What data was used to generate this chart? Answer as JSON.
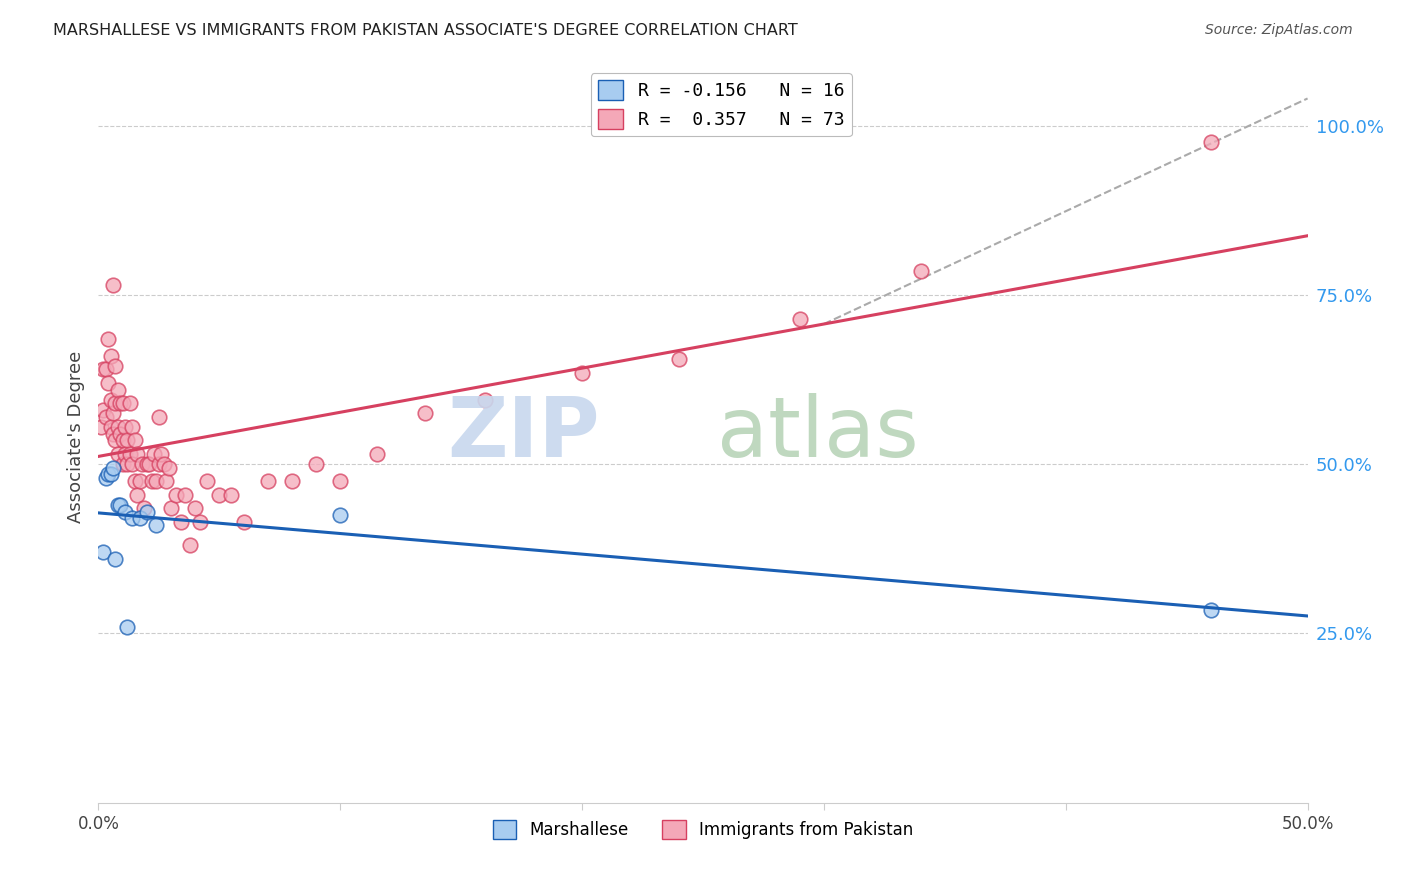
{
  "title": "MARSHALLESE VS IMMIGRANTS FROM PAKISTAN ASSOCIATE'S DEGREE CORRELATION CHART",
  "source": "Source: ZipAtlas.com",
  "ylabel": "Associate's Degree",
  "right_yticklabels": [
    "25.0%",
    "50.0%",
    "75.0%",
    "100.0%"
  ],
  "right_yticks": [
    0.25,
    0.5,
    0.75,
    1.0
  ],
  "xlim": [
    0.0,
    0.5
  ],
  "ylim": [
    0.0,
    1.08
  ],
  "xtick_vals": [
    0.0,
    0.1,
    0.2,
    0.3,
    0.4,
    0.5
  ],
  "xtick_labels": [
    "0.0%",
    "",
    "",
    "",
    "",
    "50.0%"
  ],
  "legend_r1": "R = -0.156",
  "legend_n1": "N = 16",
  "legend_r2": "R =  0.357",
  "legend_n2": "N = 73",
  "marshallese_color": "#A8CCF0",
  "pakistan_color": "#F4A8B8",
  "blue_line_color": "#1A5FB4",
  "pink_line_color": "#D64060",
  "dashed_line_color": "#AAAAAA",
  "watermark_zip_color": "#C8D8EE",
  "watermark_atlas_color": "#B8D4B8",
  "grid_color": "#CCCCCC",
  "title_color": "#222222",
  "right_axis_color": "#3399EE",
  "marsh_x": [
    0.002,
    0.003,
    0.004,
    0.005,
    0.006,
    0.007,
    0.008,
    0.009,
    0.011,
    0.012,
    0.014,
    0.017,
    0.02,
    0.024,
    0.1,
    0.46
  ],
  "marsh_y": [
    0.37,
    0.48,
    0.485,
    0.485,
    0.495,
    0.36,
    0.44,
    0.44,
    0.43,
    0.26,
    0.42,
    0.42,
    0.43,
    0.41,
    0.425,
    0.285
  ],
  "pak_x": [
    0.001,
    0.002,
    0.002,
    0.003,
    0.003,
    0.004,
    0.004,
    0.005,
    0.005,
    0.005,
    0.006,
    0.006,
    0.006,
    0.007,
    0.007,
    0.007,
    0.008,
    0.008,
    0.008,
    0.009,
    0.009,
    0.01,
    0.01,
    0.01,
    0.011,
    0.011,
    0.012,
    0.012,
    0.013,
    0.013,
    0.014,
    0.014,
    0.015,
    0.015,
    0.016,
    0.016,
    0.017,
    0.018,
    0.019,
    0.02,
    0.021,
    0.022,
    0.023,
    0.024,
    0.025,
    0.025,
    0.026,
    0.027,
    0.028,
    0.029,
    0.03,
    0.032,
    0.034,
    0.036,
    0.038,
    0.04,
    0.042,
    0.045,
    0.05,
    0.055,
    0.06,
    0.07,
    0.08,
    0.09,
    0.1,
    0.115,
    0.135,
    0.16,
    0.2,
    0.24,
    0.29,
    0.34,
    0.46
  ],
  "pak_y": [
    0.555,
    0.58,
    0.64,
    0.57,
    0.64,
    0.62,
    0.685,
    0.555,
    0.595,
    0.66,
    0.545,
    0.575,
    0.765,
    0.535,
    0.59,
    0.645,
    0.515,
    0.555,
    0.61,
    0.545,
    0.59,
    0.5,
    0.535,
    0.59,
    0.515,
    0.555,
    0.5,
    0.535,
    0.515,
    0.59,
    0.5,
    0.555,
    0.475,
    0.535,
    0.455,
    0.515,
    0.475,
    0.5,
    0.435,
    0.5,
    0.5,
    0.475,
    0.515,
    0.475,
    0.5,
    0.57,
    0.515,
    0.5,
    0.475,
    0.495,
    0.435,
    0.455,
    0.415,
    0.455,
    0.38,
    0.435,
    0.415,
    0.475,
    0.455,
    0.455,
    0.415,
    0.475,
    0.475,
    0.5,
    0.475,
    0.515,
    0.575,
    0.595,
    0.635,
    0.655,
    0.715,
    0.785,
    0.975
  ]
}
